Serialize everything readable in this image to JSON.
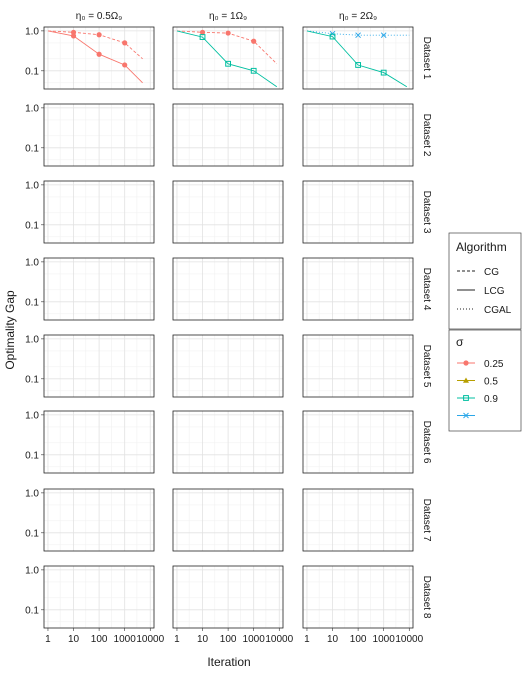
{
  "chart_data": {
    "type": "line",
    "title": "",
    "xlabel": "Iteration",
    "ylabel": "Optimality Gap",
    "x_scale": "log",
    "y_scale": "log",
    "xlim": [
      0.7,
      14000
    ],
    "ylim": [
      0.035,
      1.25
    ],
    "x_ticks": [
      "1",
      "10",
      "100",
      "1000",
      "10000"
    ],
    "x_tick_values": [
      1,
      10,
      100,
      1000,
      10000
    ],
    "y_ticks": [
      "0.1",
      "1.0"
    ],
    "y_tick_values": [
      0.1,
      1.0
    ],
    "grid": true,
    "columns": [
      "η₀ = 0.5Ω₉",
      "η₀ = 1Ω₉",
      "η₀ = 2Ω₉"
    ],
    "rows": [
      "Dataset 1",
      "Dataset 2",
      "Dataset 3",
      "Dataset 4",
      "Dataset 5",
      "Dataset 6",
      "Dataset 7",
      "Dataset 8"
    ],
    "legend": {
      "placement": "right",
      "algorithm_title": "Algorithm",
      "algorithms": [
        {
          "name": "CG",
          "dash": "dashed"
        },
        {
          "name": "LCG",
          "dash": "solid"
        },
        {
          "name": "CGAL",
          "dash": "dotted"
        }
      ],
      "sigma_title": "σ",
      "sigmas": [
        {
          "label": "0.25",
          "color": "#F8766D",
          "shape": "circle"
        },
        {
          "label": "0.5",
          "color": "#B79F00",
          "shape": "triangle"
        },
        {
          "label": "0.9",
          "color": "#00BFA0",
          "shape": "square"
        },
        {
          "label": "",
          "color": "#2BA7E8",
          "shape": "cross"
        }
      ]
    },
    "series": [
      {
        "panel": "Dataset 1 / η₀ = 0.5Ω₉",
        "algorithm": "CG",
        "sigma": "0.25",
        "x": [
          1,
          10,
          100,
          1000,
          5000
        ],
        "y": [
          1.0,
          0.92,
          0.8,
          0.5,
          0.2
        ]
      },
      {
        "panel": "Dataset 1 / η₀ = 0.5Ω₉",
        "algorithm": "LCG",
        "sigma": "0.25",
        "x": [
          1,
          10,
          100,
          1000,
          5000
        ],
        "y": [
          1.0,
          0.75,
          0.26,
          0.14,
          0.05
        ]
      },
      {
        "panel": "Dataset 1 / η₀ = 1Ω₉",
        "algorithm": "CG",
        "sigma": "0.25",
        "x": [
          1,
          10,
          100,
          1000,
          8000
        ],
        "y": [
          1.0,
          0.92,
          0.88,
          0.55,
          0.15
        ]
      },
      {
        "panel": "Dataset 1 / η₀ = 1Ω₉",
        "algorithm": "LCG",
        "sigma": "0.9",
        "x": [
          1,
          10,
          100,
          1000,
          8000
        ],
        "y": [
          1.0,
          0.7,
          0.15,
          0.1,
          0.04
        ]
      },
      {
        "panel": "Dataset 1 / η₀ = 2Ω₉",
        "algorithm": "CGAL",
        "sigma": "",
        "x": [
          1,
          10,
          100,
          1000,
          10000
        ],
        "y": [
          1.0,
          0.85,
          0.78,
          0.78,
          0.78
        ]
      },
      {
        "panel": "Dataset 1 / η₀ = 2Ω₉",
        "algorithm": "LCG",
        "sigma": "0.9",
        "x": [
          1,
          10,
          100,
          1000,
          8000
        ],
        "y": [
          1.0,
          0.72,
          0.14,
          0.09,
          0.04
        ]
      }
    ]
  }
}
